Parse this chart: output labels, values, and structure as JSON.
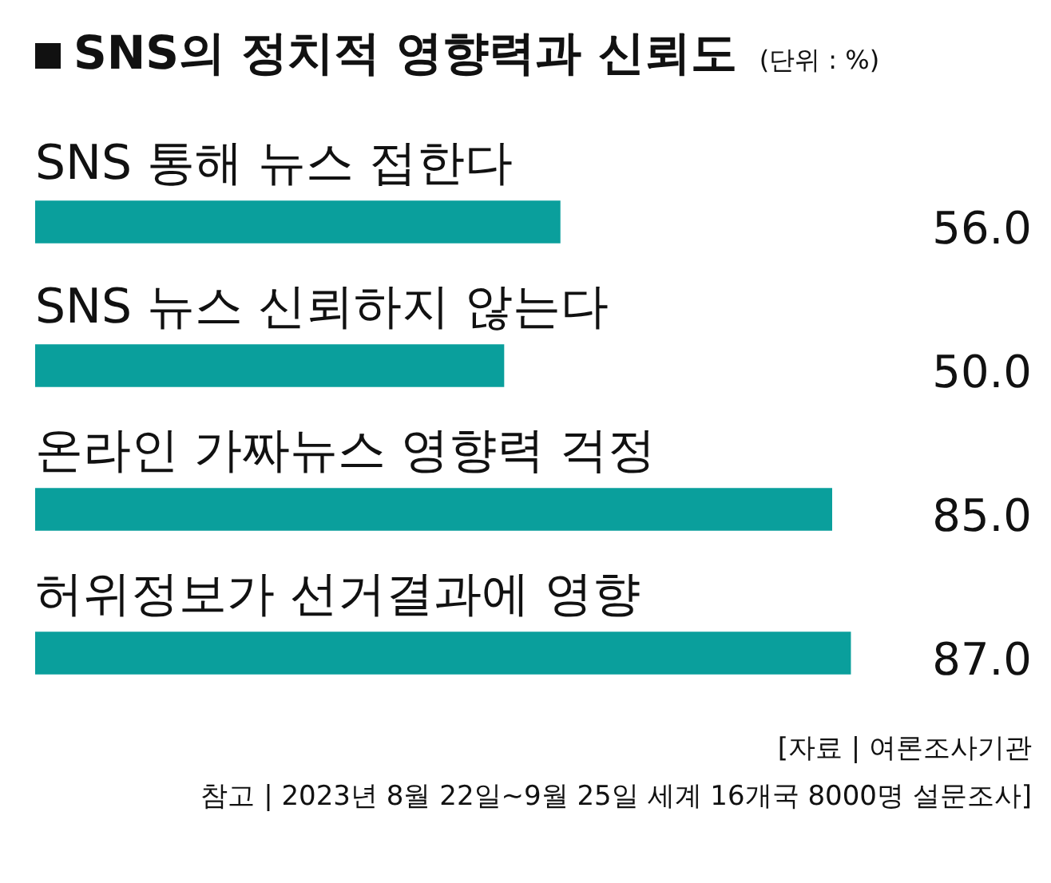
{
  "chart_data": {
    "type": "bar",
    "orientation": "horizontal",
    "title": "SNS의 정치적 영향력과 신뢰도",
    "subtitle": "(단위 : %)",
    "categories": [
      "SNS 통해 뉴스 접한다",
      "SNS 뉴스 신뢰하지 않는다",
      "온라인 가짜뉴스 영향력 걱정",
      "허위정보가 선거결과에 영향"
    ],
    "values": [
      56.0,
      50.0,
      85.0,
      87.0
    ],
    "value_labels": [
      "56.0",
      "50.0",
      "85.0",
      "87.0"
    ],
    "color": "#0a9f9c",
    "grid": false,
    "legend": false,
    "tick_labels": false,
    "annotations": [
      "[자료 | 여론조사기관",
      "참고 | 2023년 8월 22일~9월 25일 세계 16개국 8000명 설문조사]"
    ]
  }
}
